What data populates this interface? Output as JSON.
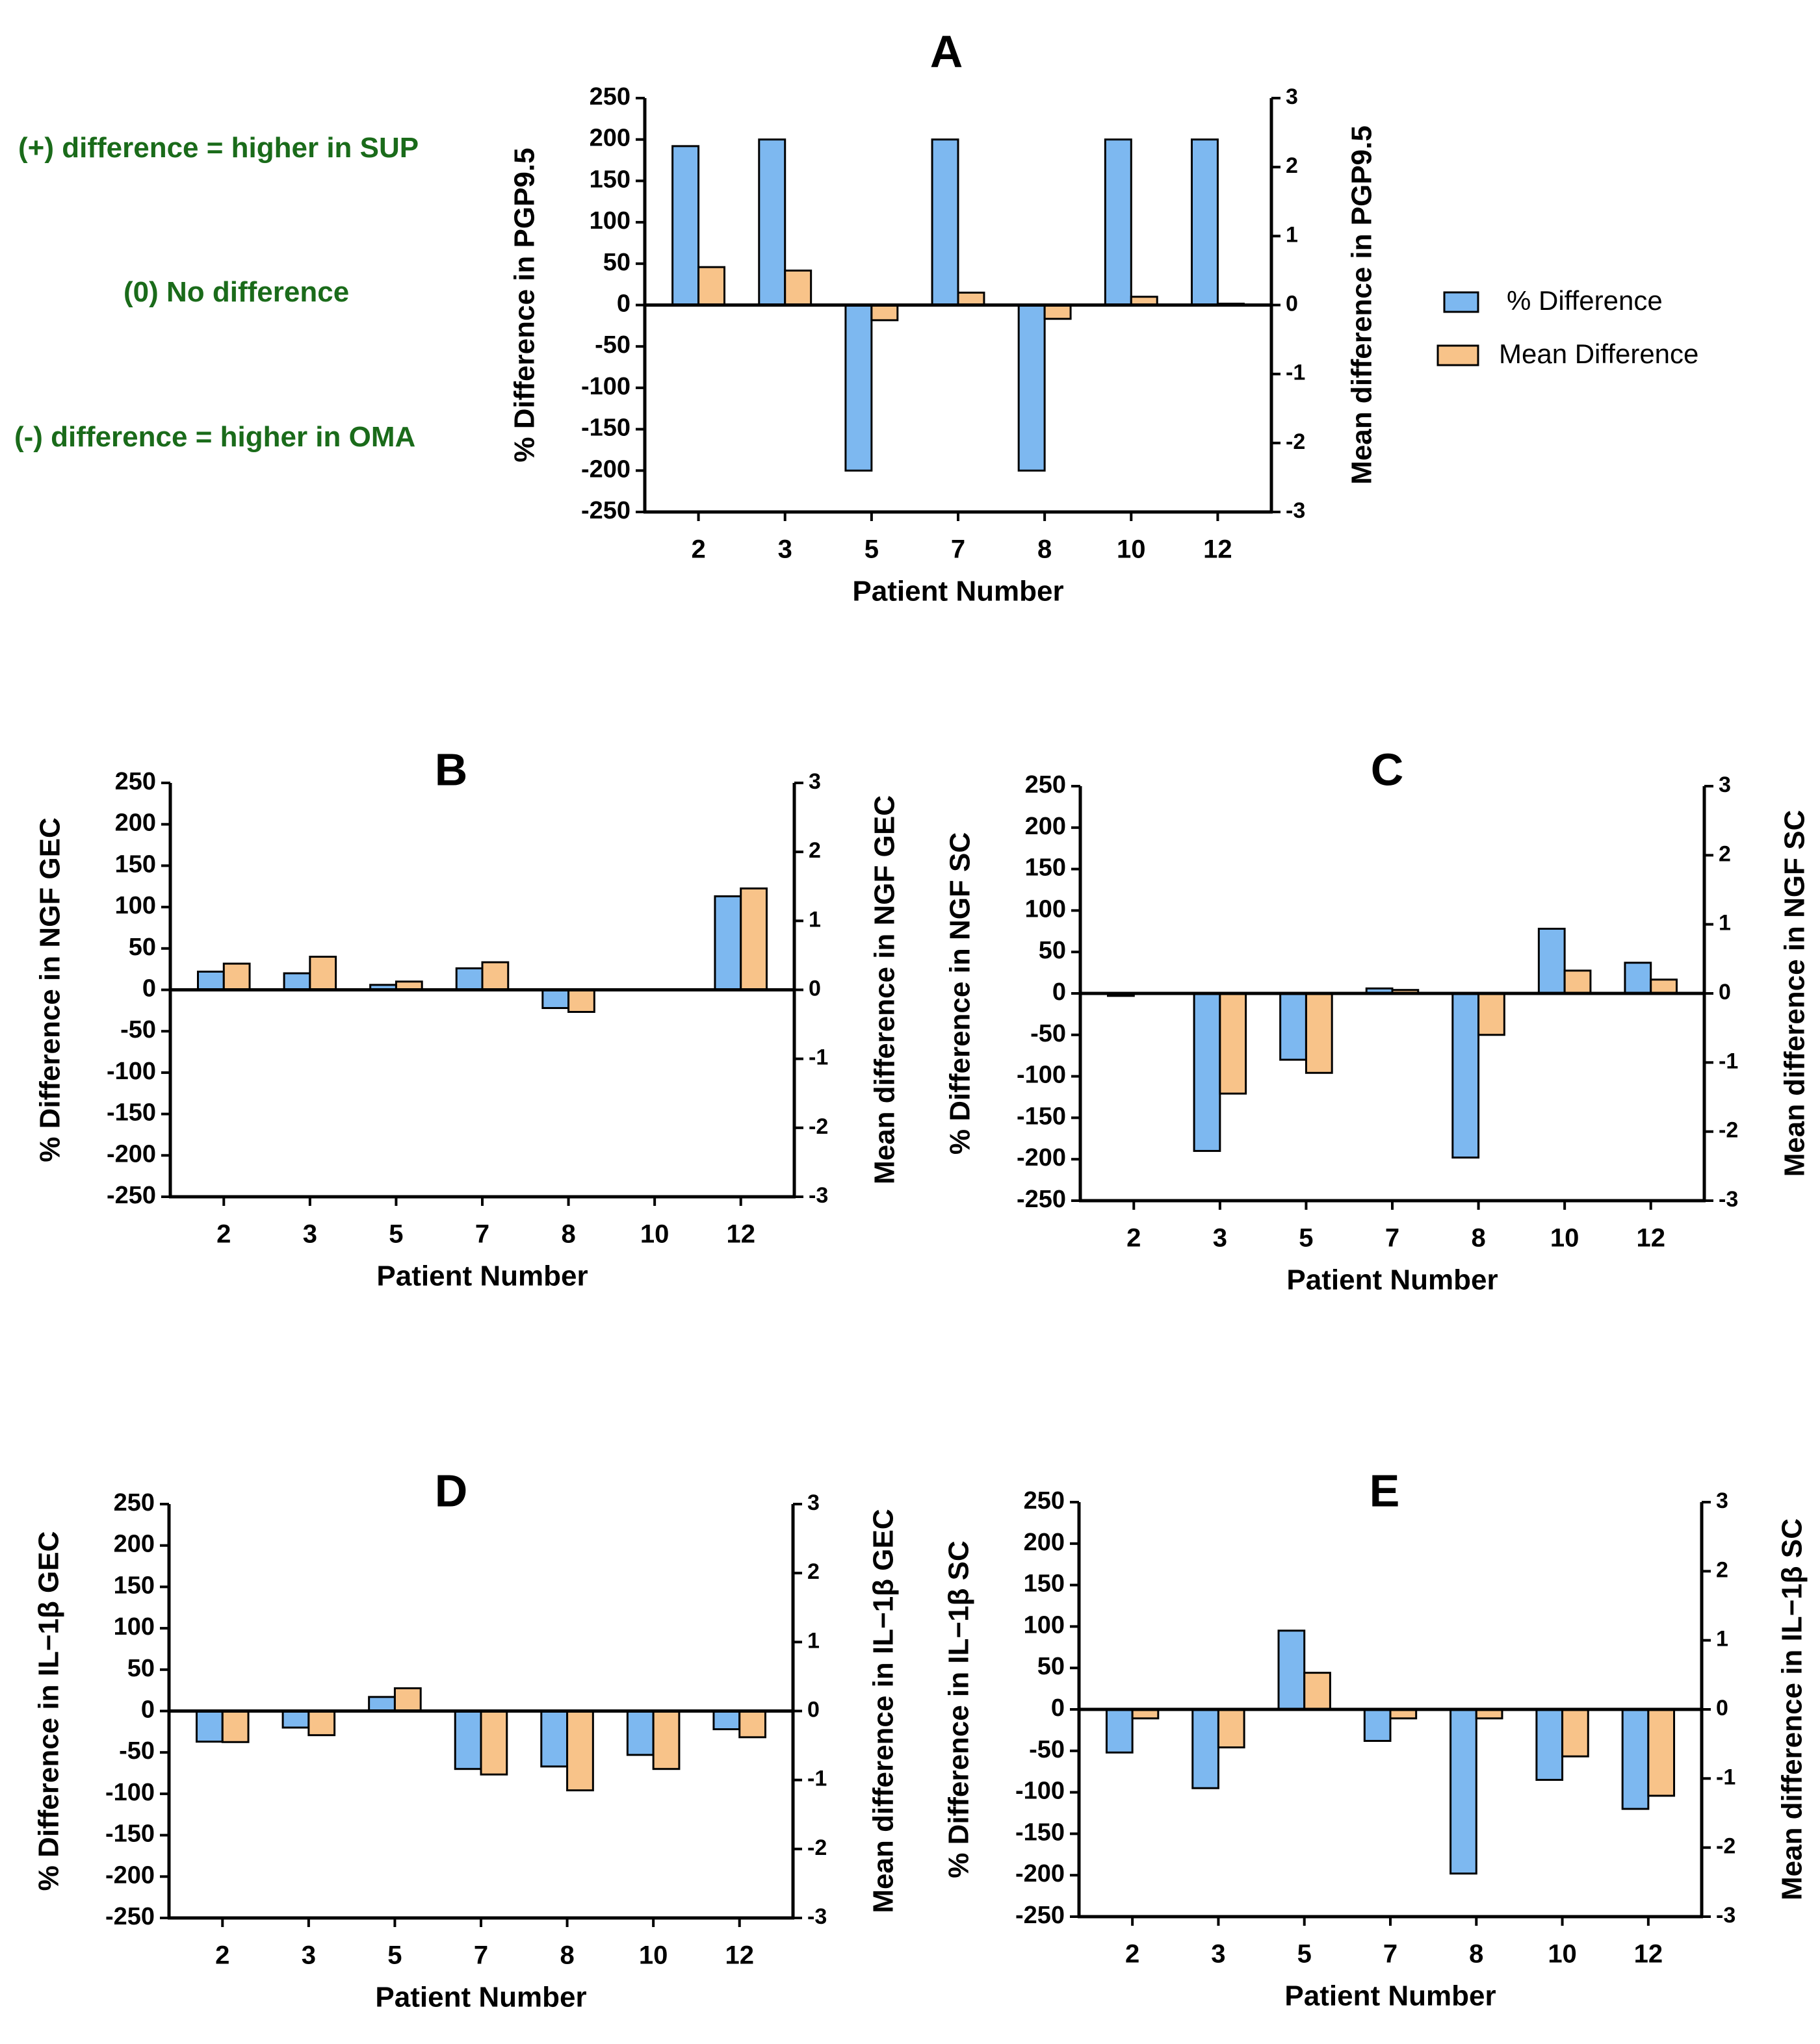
{
  "figure": {
    "annotations": {
      "positive": "(+) difference = higher in SUP",
      "zero": "(0) No difference",
      "negative": "(-) difference = higher in OMA"
    },
    "legend": {
      "pct": "% Difference",
      "mean": "Mean Difference"
    },
    "colors": {
      "pct": "#7db8f0",
      "mean": "#f8c389",
      "axis": "#000000",
      "annot": "#1a6b1a"
    }
  },
  "chart_data": [
    {
      "panel": "A",
      "type": "bar",
      "title": "A",
      "categories": [
        "2",
        "3",
        "5",
        "7",
        "8",
        "10",
        "12"
      ],
      "xlabel": "Patient Number",
      "ylabel": "% Difference in PGP9.5",
      "y2label": "Mean difference in PGP9.5",
      "ylim": [
        -250,
        250
      ],
      "y2lim": [
        -3,
        3
      ],
      "yticks": [
        "250",
        "200",
        "150",
        "100",
        "50",
        "0",
        "-50",
        "-100",
        "-150",
        "-200",
        "-250"
      ],
      "y2ticks": [
        "3",
        "2",
        "1",
        "0",
        "-1",
        "-2",
        "-3"
      ],
      "series": [
        {
          "name": "% Difference",
          "axis": "left",
          "values": [
            192,
            200,
            -200,
            200,
            -200,
            200,
            200
          ]
        },
        {
          "name": "Mean Difference",
          "axis": "right",
          "values": [
            0.55,
            0.5,
            -0.22,
            0.18,
            -0.2,
            0.12,
            0.02
          ]
        }
      ]
    },
    {
      "panel": "B",
      "type": "bar",
      "title": "B",
      "categories": [
        "2",
        "3",
        "5",
        "7",
        "8",
        "10",
        "12"
      ],
      "xlabel": "Patient Number",
      "ylabel": "% Difference in NGF GEC",
      "y2label": "Mean difference in NGF GEC",
      "ylim": [
        -250,
        250
      ],
      "y2lim": [
        -3,
        3
      ],
      "yticks": [
        "250",
        "200",
        "150",
        "100",
        "50",
        "0",
        "-50",
        "-100",
        "-150",
        "-200",
        "-250"
      ],
      "y2ticks": [
        "3",
        "2",
        "1",
        "0",
        "-1",
        "-2",
        "-3"
      ],
      "series": [
        {
          "name": "% Difference",
          "axis": "left",
          "values": [
            22,
            20,
            6,
            26,
            -22,
            0,
            113
          ]
        },
        {
          "name": "Mean Difference",
          "axis": "right",
          "values": [
            0.38,
            0.48,
            0.12,
            0.4,
            -0.32,
            0,
            1.47
          ]
        }
      ]
    },
    {
      "panel": "C",
      "type": "bar",
      "title": "C",
      "categories": [
        "2",
        "3",
        "5",
        "7",
        "8",
        "10",
        "12"
      ],
      "xlabel": "Patient Number",
      "ylabel": "% Difference in NGF SC",
      "y2label": "Mean difference in NGF SC",
      "ylim": [
        -250,
        250
      ],
      "y2lim": [
        -3,
        3
      ],
      "yticks": [
        "250",
        "200",
        "150",
        "100",
        "50",
        "0",
        "-50",
        "-100",
        "-150",
        "-200",
        "-250"
      ],
      "y2ticks": [
        "3",
        "2",
        "1",
        "0",
        "-1",
        "-2",
        "-3"
      ],
      "series": [
        {
          "name": "% Difference",
          "axis": "left",
          "values": [
            -3,
            -190,
            -80,
            6,
            -198,
            78,
            37
          ]
        },
        {
          "name": "Mean Difference",
          "axis": "right",
          "values": [
            0,
            -1.45,
            -1.15,
            0.05,
            -0.6,
            0.33,
            0.2
          ]
        }
      ]
    },
    {
      "panel": "D",
      "type": "bar",
      "title": "D",
      "categories": [
        "2",
        "3",
        "5",
        "7",
        "8",
        "10",
        "12"
      ],
      "xlabel": "Patient Number",
      "ylabel": "% Difference in IL−1β GEC",
      "y2label": "Mean difference in IL−1β GEC",
      "ylim": [
        -250,
        250
      ],
      "y2lim": [
        -3,
        3
      ],
      "yticks": [
        "250",
        "200",
        "150",
        "100",
        "50",
        "0",
        "-50",
        "-100",
        "-150",
        "-200",
        "-250"
      ],
      "y2ticks": [
        "3",
        "2",
        "1",
        "0",
        "-1",
        "-2",
        "-3"
      ],
      "series": [
        {
          "name": "% Difference",
          "axis": "left",
          "values": [
            -37,
            -20,
            17,
            -70,
            -67,
            -53,
            -22
          ]
        },
        {
          "name": "Mean Difference",
          "axis": "right",
          "values": [
            -0.45,
            -0.35,
            0.33,
            -0.92,
            -1.15,
            -0.84,
            -0.38
          ]
        }
      ]
    },
    {
      "panel": "E",
      "type": "bar",
      "title": "E",
      "categories": [
        "2",
        "3",
        "5",
        "7",
        "8",
        "10",
        "12"
      ],
      "xlabel": "Patient Number",
      "ylabel": "% Difference in IL−1β SC",
      "y2label": "Mean difference in IL−1β SC",
      "ylim": [
        -250,
        250
      ],
      "y2lim": [
        -3,
        3
      ],
      "yticks": [
        "250",
        "200",
        "150",
        "100",
        "50",
        "0",
        "-50",
        "-100",
        "-150",
        "-200",
        "-250"
      ],
      "y2ticks": [
        "3",
        "2",
        "1",
        "0",
        "-1",
        "-2",
        "-3"
      ],
      "series": [
        {
          "name": "% Difference",
          "axis": "left",
          "values": [
            -52,
            -95,
            95,
            -38,
            -198,
            -85,
            -120
          ]
        },
        {
          "name": "Mean Difference",
          "axis": "right",
          "values": [
            -0.13,
            -0.55,
            0.53,
            -0.13,
            -0.13,
            -0.68,
            -1.25
          ]
        }
      ]
    }
  ]
}
